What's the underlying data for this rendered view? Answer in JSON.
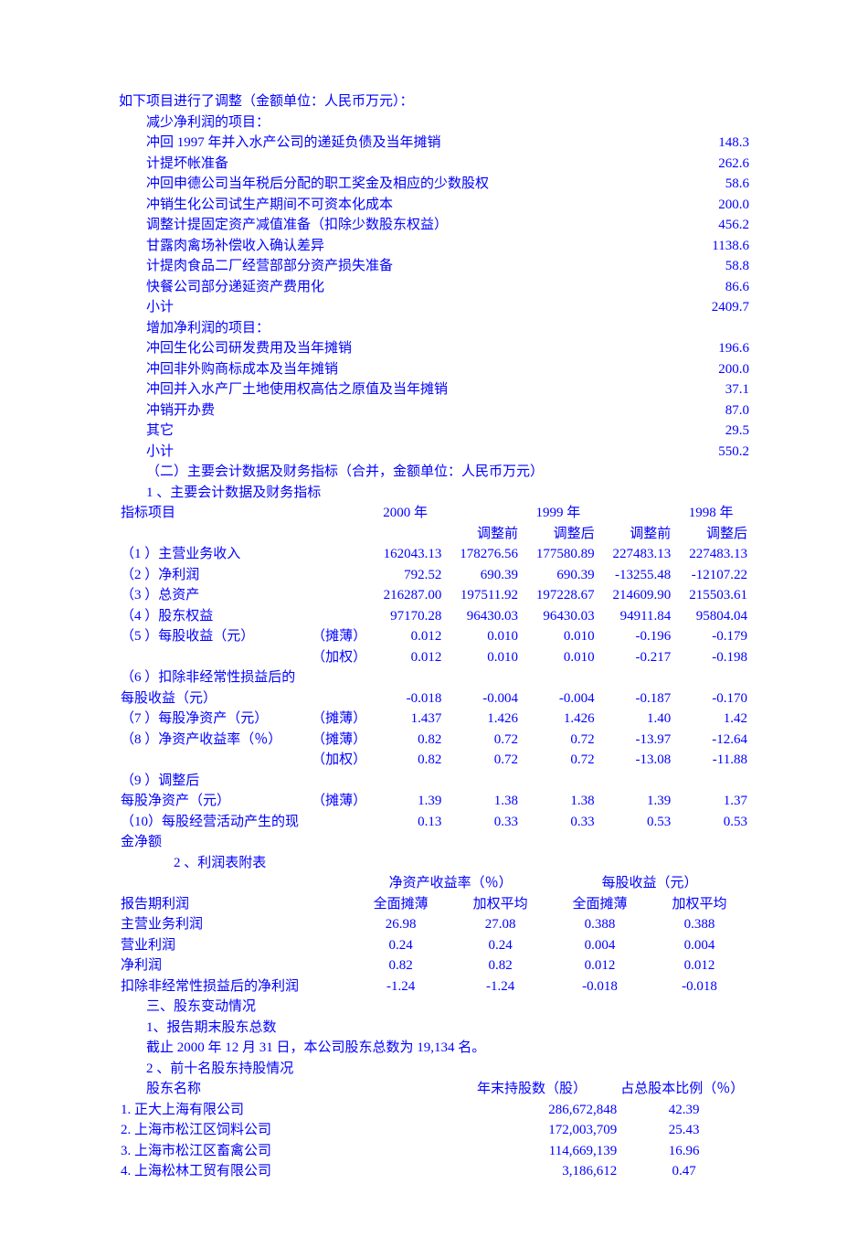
{
  "heading": "如下项目进行了调整（金额单位：人民币万元）：",
  "sec_decrease": "减少净利润的项目：",
  "decrease": [
    {
      "label": "冲回 1997 年并入水产公司的递延负债及当年摊销",
      "val": "148.3"
    },
    {
      "label": "计提坏帐准备",
      "val": "262.6"
    },
    {
      "label": "冲回申德公司当年税后分配的职工奖金及相应的少数股权",
      "val": "58.6"
    },
    {
      "label": "冲销生化公司试生产期间不可资本化成本",
      "val": "200.0"
    },
    {
      "label": "调整计提固定资产减值准备（扣除少数股东权益）",
      "val": "456.2"
    },
    {
      "label": "甘露肉禽场补偿收入确认差异",
      "val": "1138.6"
    },
    {
      "label": "计提肉食品二厂经营部部分资产损失准备",
      "val": "58.8"
    },
    {
      "label": "快餐公司部分递延资产费用化",
      "val": "86.6"
    },
    {
      "label": "小计",
      "val": "2409.7"
    }
  ],
  "sec_increase": "增加净利润的项目：",
  "increase": [
    {
      "label": "冲回生化公司研发费用及当年摊销",
      "val": "196.6"
    },
    {
      "label": "冲回非外购商标成本及当年摊销",
      "val": "200.0"
    },
    {
      "label": "冲回并入水产厂土地使用权高估之原值及当年摊销",
      "val": "37.1"
    },
    {
      "label": "冲销开办费",
      "val": "87.0"
    },
    {
      "label": "其它",
      "val": "29.5"
    },
    {
      "label": "小计",
      "val": "550.2"
    }
  ],
  "sec2_title": "（二）主要会计数据及财务指标（合并，金额单位：人民币万元）",
  "sec2_sub1": "1 、主要会计数据及财务指标",
  "ind_hdr": {
    "c0": "指标项目",
    "c1": "2000 年",
    "c2": "1999 年",
    "c3": "1998 年"
  },
  "ind_sub": {
    "a": "调整前",
    "b": "调整后",
    "c": "调整前",
    "d": "调整后"
  },
  "ind": [
    {
      "n": "（1 ）主营业务收入",
      "sub": "",
      "v": [
        "162043.13",
        "178276.56",
        "177580.89",
        "227483.13",
        "227483.13"
      ]
    },
    {
      "n": "（2 ）净利润",
      "sub": "",
      "v": [
        "792.52",
        "690.39",
        "690.39",
        "-13255.48",
        "-12107.22"
      ]
    },
    {
      "n": "（3 ）总资产",
      "sub": "",
      "v": [
        "216287.00",
        "197511.92",
        "197228.67",
        "214609.90",
        "215503.61"
      ]
    },
    {
      "n": "（4 ）股东权益",
      "sub": "",
      "v": [
        "97170.28",
        "96430.03",
        "96430.03",
        "94911.84",
        "95804.04"
      ]
    },
    {
      "n": "（5 ）每股收益（元）",
      "sub": "（摊薄）",
      "v": [
        "0.012",
        "0.010",
        "0.010",
        "-0.196",
        "-0.179"
      ]
    },
    {
      "n": "",
      "sub": "（加权）",
      "v": [
        "0.012",
        "0.010",
        "0.010",
        "-0.217",
        "-0.198"
      ]
    },
    {
      "n": "（6 ）扣除非经常性损益后的",
      "sub": "",
      "v": [
        "",
        "",
        "",
        "",
        ""
      ]
    },
    {
      "n": "每股收益（元）",
      "sub": "",
      "v": [
        "-0.018",
        "-0.004",
        "-0.004",
        "-0.187",
        "-0.170"
      ],
      "noindent": true
    },
    {
      "n": "（7 ）每股净资产（元）",
      "sub": "（摊薄）",
      "v": [
        "1.437",
        "1.426",
        "1.426",
        "1.40",
        "1.42"
      ]
    },
    {
      "n": "（8 ）净资产收益率（％）",
      "sub": "（摊薄）",
      "v": [
        "0.82",
        "0.72",
        "0.72",
        "-13.97",
        "-12.64"
      ]
    },
    {
      "n": "",
      "sub": "（加权）",
      "v": [
        "0.82",
        "0.72",
        "0.72",
        "-13.08",
        "-11.88"
      ]
    },
    {
      "n": "（9 ）调整后",
      "sub": "",
      "v": [
        "",
        "",
        "",
        "",
        ""
      ]
    },
    {
      "n": "每股净资产（元）",
      "sub": "（摊薄）",
      "v": [
        "1.39",
        "1.38",
        "1.38",
        "1.39",
        "1.37"
      ],
      "noindent": true
    },
    {
      "n": "（10）每股经营活动产生的现金净额",
      "sub": "",
      "v": [
        "0.13",
        "0.33",
        "0.33",
        "0.53",
        "0.53"
      ]
    }
  ],
  "sec2_sub2": "2 、利润表附表",
  "pt_hdr1": {
    "a": "净资产收益率（％）",
    "b": "每股收益（元）"
  },
  "pt_hdr2": {
    "c0": "报告期利润",
    "c1": "全面摊薄",
    "c2": "加权平均",
    "c3": "全面摊薄",
    "c4": "加权平均"
  },
  "pt": [
    {
      "n": "主营业务利润",
      "v": [
        "26.98",
        "27.08",
        "0.388",
        "0.388"
      ]
    },
    {
      "n": "营业利润",
      "v": [
        "0.24",
        "0.24",
        "0.004",
        "0.004"
      ]
    },
    {
      "n": "净利润",
      "v": [
        "0.82",
        "0.82",
        "0.012",
        "0.012"
      ]
    },
    {
      "n": "扣除非经常性损益后的净利润",
      "v": [
        "-1.24",
        "-1.24",
        "-0.018",
        "-0.018"
      ]
    }
  ],
  "sec3_title": "三、股东变动情况",
  "sec3_sub1": "1、报告期末股东总数",
  "sec3_text": "截止 2000 年 12 月 31 日，本公司股东总数为 19,134 名。",
  "sec3_sub2": "2 、前十名股东持股情况",
  "sh_hdr": {
    "c0": "股东名称",
    "c1": "年末持股数（股）",
    "c2": "占总股本比例（％）"
  },
  "sh": [
    {
      "n": "1. 正大上海有限公司",
      "shares": "286,672,848",
      "pct": "42.39"
    },
    {
      "n": "2. 上海市松江区饲料公司",
      "shares": "172,003,709",
      "pct": "25.43"
    },
    {
      "n": "3. 上海市松江区畜禽公司",
      "shares": "114,669,139",
      "pct": "16.96"
    },
    {
      "n": "4. 上海松林工贸有限公司",
      "shares": "3,186,612",
      "pct": "0.47"
    }
  ]
}
